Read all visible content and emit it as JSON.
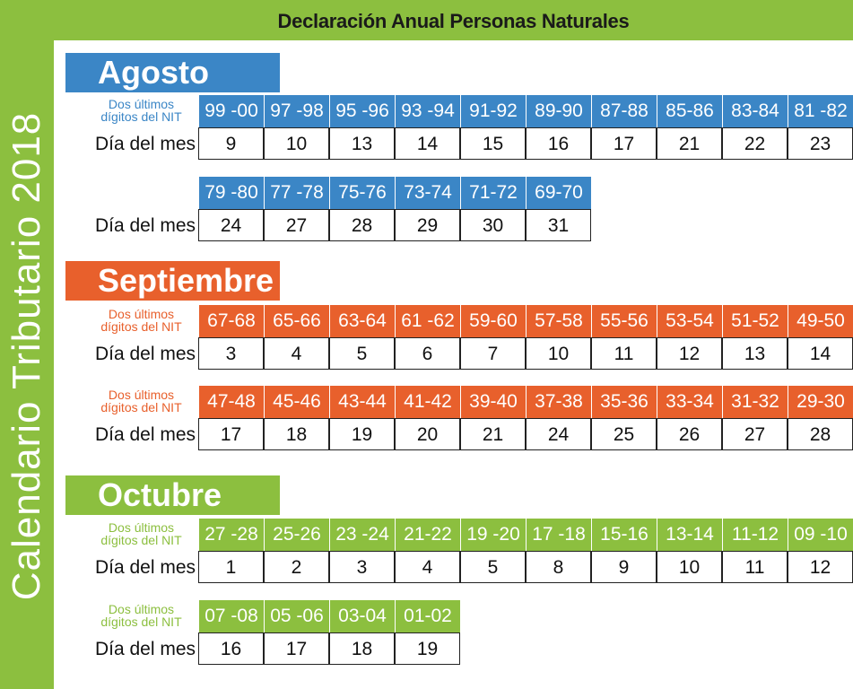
{
  "title": "Declaración Anual Personas Naturales",
  "side_title": "Calendario Tributario 2018",
  "labels": {
    "nit": "Dos últimos dígitos del NIT",
    "dia": "Día del mes"
  },
  "colors": {
    "green": "#8cbf3f",
    "blue": "#3b86c6",
    "orange": "#e8602c"
  },
  "months": [
    {
      "name": "Agosto",
      "rows": [
        {
          "nit": [
            "99 -00",
            "97 -98",
            "95 -96",
            "93 -94",
            "91-92",
            "89-90",
            "87-88",
            "85-86",
            "83-84",
            "81 -82"
          ],
          "dia": [
            "9",
            "10",
            "13",
            "14",
            "15",
            "16",
            "17",
            "21",
            "22",
            "23"
          ]
        },
        {
          "nit": [
            "79 -80",
            "77 -78",
            "75-76",
            "73-74",
            "71-72",
            "69-70"
          ],
          "dia": [
            "24",
            "27",
            "28",
            "29",
            "30",
            "31"
          ]
        }
      ]
    },
    {
      "name": "Septiembre",
      "rows": [
        {
          "nit": [
            "67-68",
            "65-66",
            "63-64",
            "61 -62",
            "59-60",
            "57-58",
            "55-56",
            "53-54",
            "51-52",
            "49-50"
          ],
          "dia": [
            "3",
            "4",
            "5",
            "6",
            "7",
            "10",
            "11",
            "12",
            "13",
            "14"
          ]
        },
        {
          "nit": [
            "47-48",
            "45-46",
            "43-44",
            "41-42",
            "39-40",
            "37-38",
            "35-36",
            "33-34",
            "31-32",
            "29-30"
          ],
          "dia": [
            "17",
            "18",
            "19",
            "20",
            "21",
            "24",
            "25",
            "26",
            "27",
            "28"
          ]
        }
      ]
    },
    {
      "name": "Octubre",
      "rows": [
        {
          "nit": [
            "27 -28",
            "25-26",
            "23 -24",
            "21-22",
            "19 -20",
            "17 -18",
            "15-16",
            "13-14",
            "11-12",
            "09 -10"
          ],
          "dia": [
            "1",
            "2",
            "3",
            "4",
            "5",
            "8",
            "9",
            "10",
            "11",
            "12"
          ]
        },
        {
          "nit": [
            "07 -08",
            "05 -06",
            "03-04",
            "01-02"
          ],
          "dia": [
            "16",
            "17",
            "18",
            "19"
          ]
        }
      ]
    }
  ]
}
